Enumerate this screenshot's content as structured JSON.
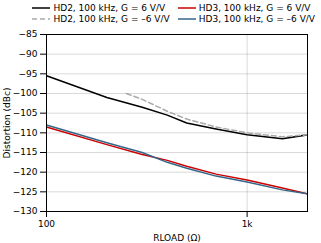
{
  "chart_data": {
    "type": "line",
    "xlabel": "RLOAD (Ω)",
    "ylabel": "Distortion (dBc)",
    "log": "x",
    "xlim": [
      100,
      2000
    ],
    "xticks": [
      100,
      {
        "value": 1000,
        "label": "1k"
      }
    ],
    "ylim": [
      -130,
      -85
    ],
    "yticks": [
      -130,
      -125,
      -120,
      -115,
      -110,
      -105,
      -100,
      -95,
      -90,
      -85
    ],
    "grid": true,
    "legend": "upper right",
    "series": [
      {
        "name": "HD2, 100 kHz, G = 6 V/V",
        "color": "#000000",
        "line_style": "solid",
        "x": [
          100,
          200,
          300,
          400,
          500,
          700,
          1000,
          1500,
          2000
        ],
        "values": [
          -95.5,
          -101.0,
          -103.5,
          -105.5,
          -107.5,
          -109.0,
          -110.5,
          -111.5,
          -110.5
        ]
      },
      {
        "name": "HD3, 100 kHz, G = 6 V/V",
        "color": "#cc0000",
        "line_style": "solid",
        "x": [
          100,
          200,
          300,
          400,
          500,
          700,
          1000,
          1500,
          2000
        ],
        "values": [
          -108.5,
          -113.0,
          -115.5,
          -117.0,
          -118.5,
          -120.5,
          -122.0,
          -124.0,
          -125.5
        ]
      },
      {
        "name": "HD2, 100 kHz, G = –6 V/V",
        "color": "#aaaaaa",
        "line_style": "dashed",
        "x": [
          250,
          300,
          400,
          500,
          700,
          1000,
          1500,
          2000
        ],
        "values": [
          -100.0,
          -101.5,
          -104.5,
          -106.5,
          -108.5,
          -110.0,
          -111.0,
          -110.5
        ]
      },
      {
        "name": "HD3, 100 kHz, G = –6 V/V",
        "color": "#336688",
        "line_style": "solid",
        "x": [
          100,
          200,
          300,
          400,
          500,
          700,
          1000,
          1500,
          2000
        ],
        "values": [
          -108.0,
          -112.5,
          -115.0,
          -117.5,
          -119.0,
          -121.0,
          -122.5,
          -124.5,
          -125.5
        ]
      }
    ]
  }
}
